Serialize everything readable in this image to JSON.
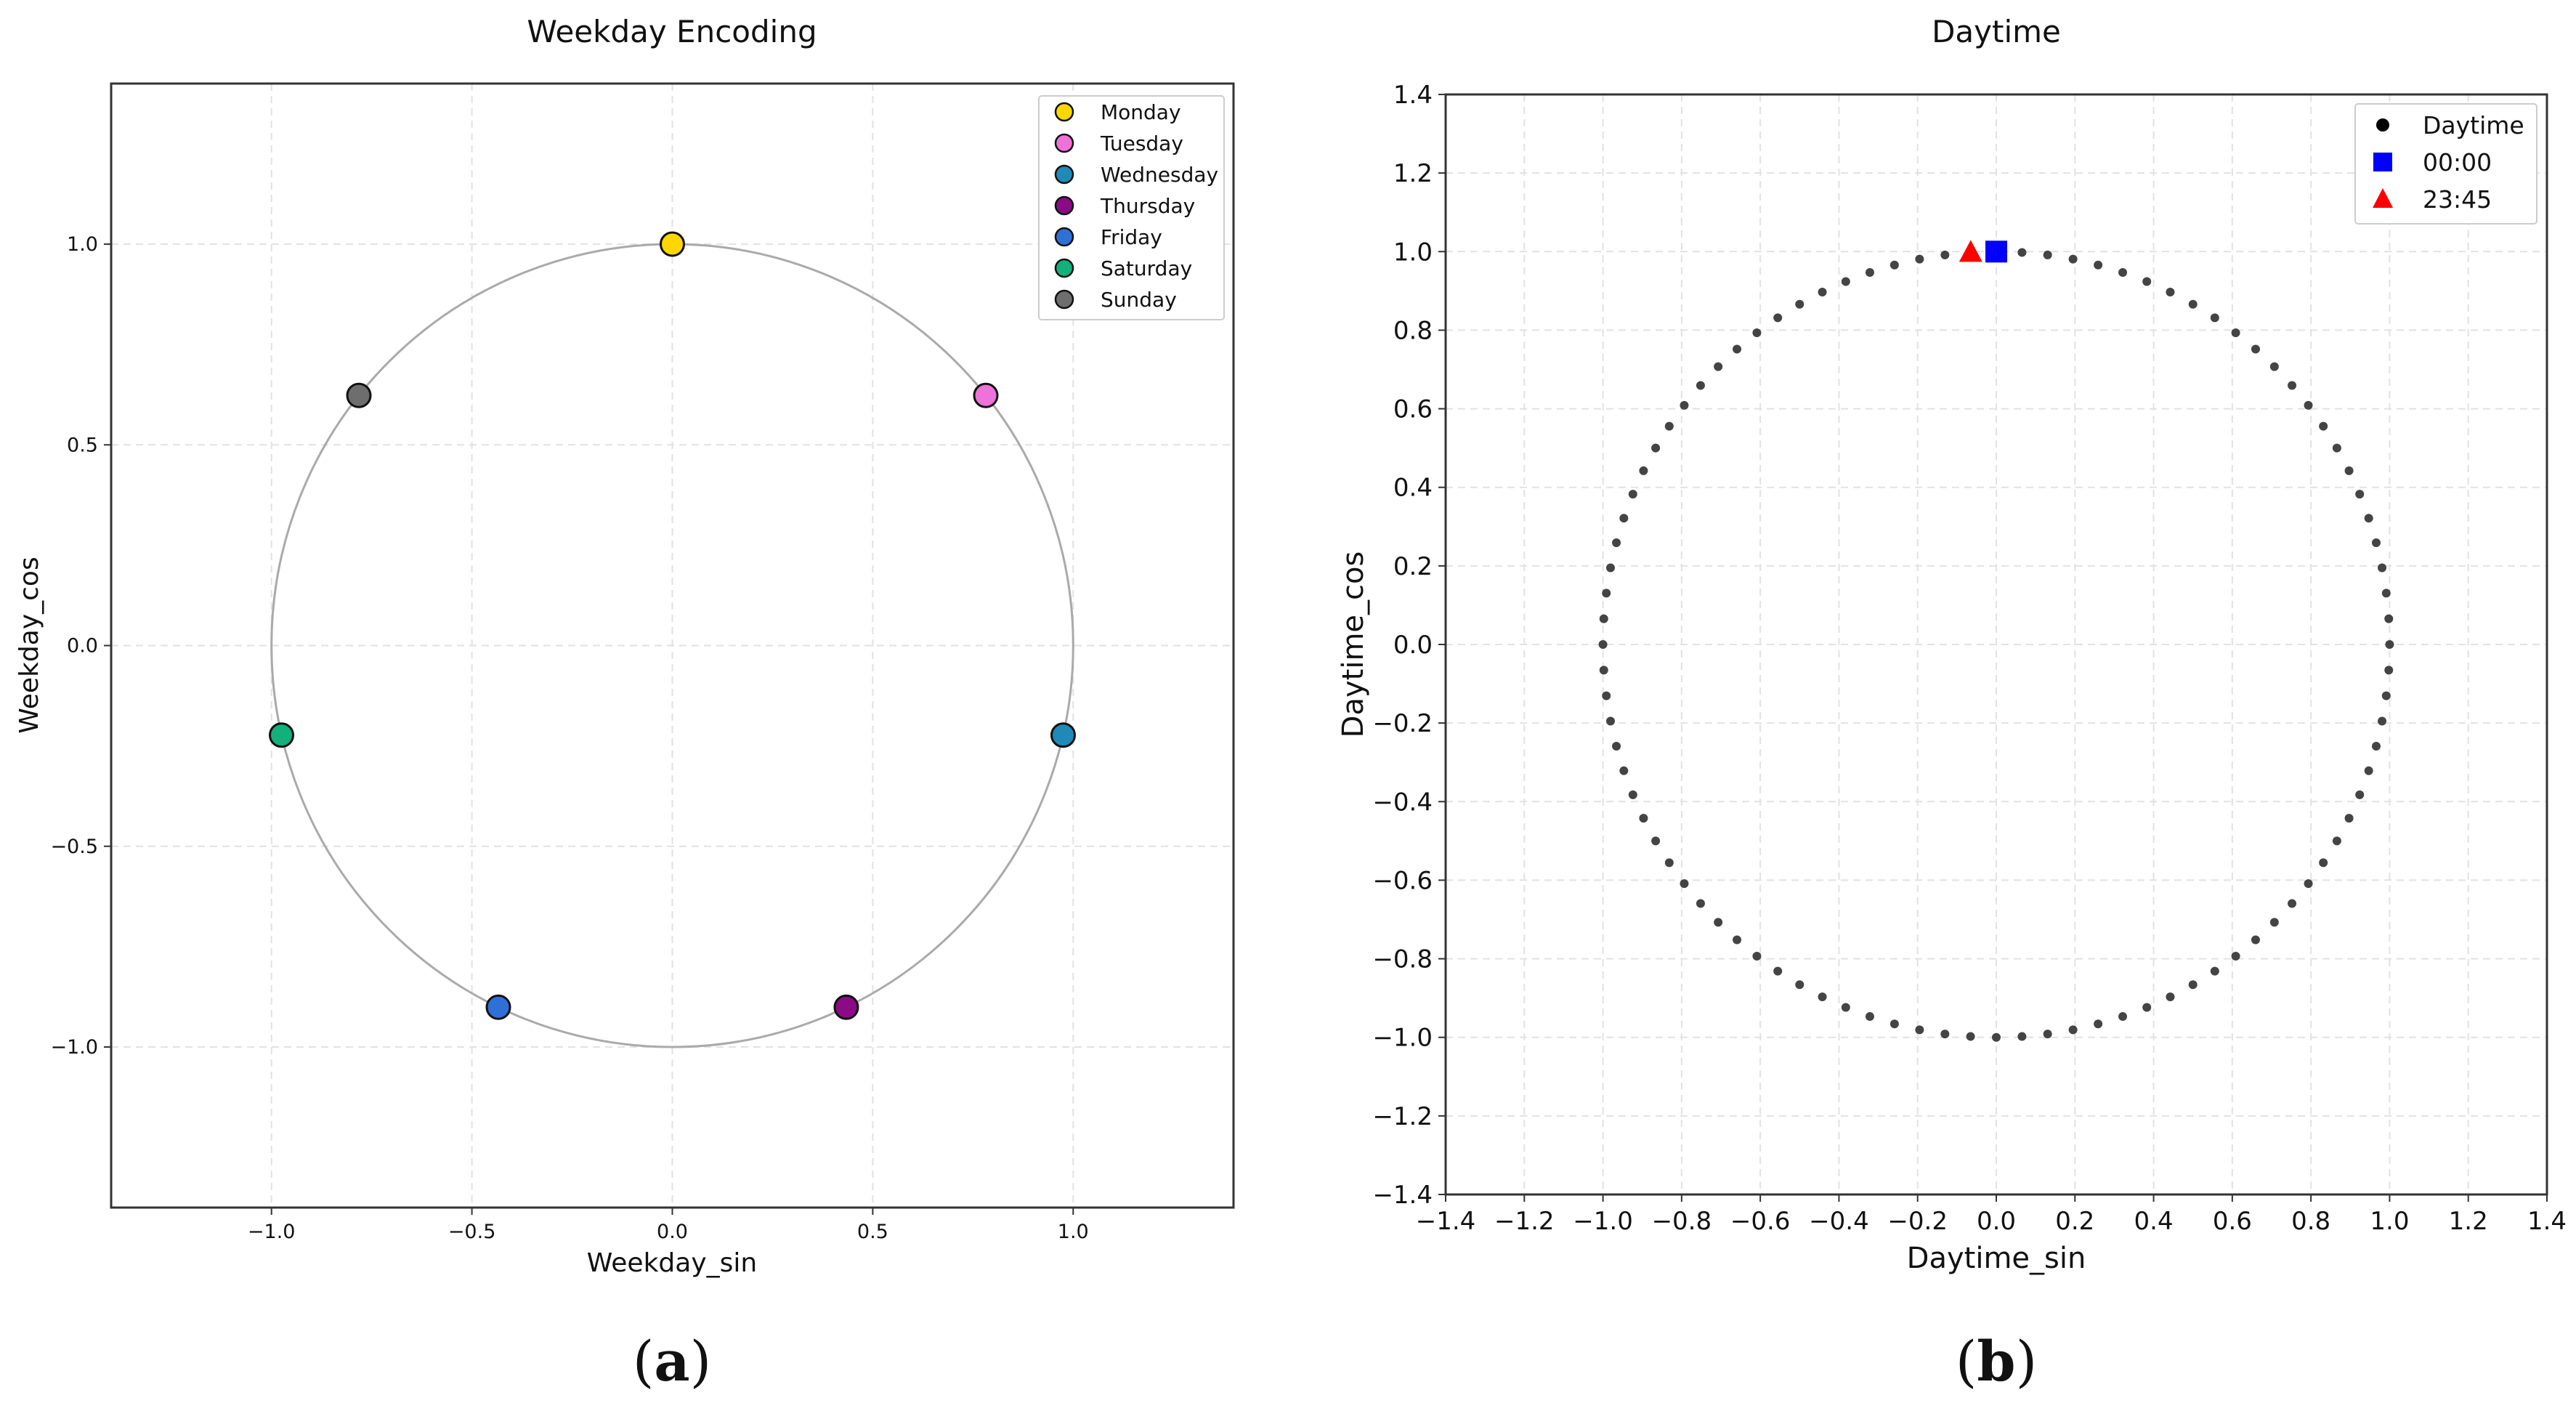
{
  "panels": [
    {
      "label_open": "(",
      "label_letter": "a",
      "label_close": ")"
    },
    {
      "label_open": "(",
      "label_letter": "b",
      "label_close": ")"
    }
  ],
  "chart_data": [
    {
      "type": "scatter",
      "title": "Weekday Encoding",
      "xlabel": "Weekday_sin",
      "ylabel": "Weekday_cos",
      "xlim": [
        -1.4,
        1.4
      ],
      "ylim": [
        -1.4,
        1.4
      ],
      "xticks": [
        -1.0,
        -0.5,
        0.0,
        0.5,
        1.0
      ],
      "yticks": [
        -1.0,
        -0.5,
        0.0,
        0.5,
        1.0
      ],
      "xtick_labels": [
        "−1.0",
        "−0.5",
        "0.0",
        "0.5",
        "1.0"
      ],
      "ytick_labels": [
        "−1.0",
        "−0.5",
        "0.0",
        "0.5",
        "1.0"
      ],
      "grid": true,
      "reference_circle": {
        "center": [
          0,
          0
        ],
        "radius": 1.0,
        "color": "#aaaaaa"
      },
      "legend_position": "top-right",
      "series": [
        {
          "name": "Monday",
          "color": "#ffd700",
          "x": 0.0,
          "y": 1.0
        },
        {
          "name": "Tuesday",
          "color": "#ee72d8",
          "x": 0.782,
          "y": 0.623
        },
        {
          "name": "Wednesday",
          "color": "#1f8ab8",
          "x": 0.975,
          "y": -0.223
        },
        {
          "name": "Thursday",
          "color": "#8b0a85",
          "x": 0.434,
          "y": -0.901
        },
        {
          "name": "Friday",
          "color": "#2f6fd8",
          "x": -0.434,
          "y": -0.901
        },
        {
          "name": "Saturday",
          "color": "#12b07a",
          "x": -0.975,
          "y": -0.223
        },
        {
          "name": "Sunday",
          "color": "#6e6e6e",
          "x": -0.782,
          "y": 0.623
        }
      ]
    },
    {
      "type": "scatter",
      "title": "Daytime",
      "xlabel": "Daytime_sin",
      "ylabel": "Daytime_cos",
      "xlim": [
        -1.4,
        1.4
      ],
      "ylim": [
        -1.4,
        1.4
      ],
      "xticks": [
        -1.4,
        -1.2,
        -1.0,
        -0.8,
        -0.6,
        -0.4,
        -0.2,
        0.0,
        0.2,
        0.4,
        0.6,
        0.8,
        1.0,
        1.2,
        1.4
      ],
      "yticks": [
        -1.4,
        -1.2,
        -1.0,
        -0.8,
        -0.6,
        -0.4,
        -0.2,
        0.0,
        0.2,
        0.4,
        0.6,
        0.8,
        1.0,
        1.2,
        1.4
      ],
      "xtick_labels": [
        "−1.4",
        "−1.2",
        "−1.0",
        "−0.8",
        "−0.6",
        "−0.4",
        "−0.2",
        "0.0",
        "0.2",
        "0.4",
        "0.6",
        "0.8",
        "1.0",
        "1.2",
        "1.4"
      ],
      "ytick_labels": [
        "−1.4",
        "−1.2",
        "−1.0",
        "−0.8",
        "−0.6",
        "−0.4",
        "−0.2",
        "0.0",
        "0.2",
        "0.4",
        "0.6",
        "0.8",
        "1.0",
        "1.2",
        "1.4"
      ],
      "grid": true,
      "legend_position": "top-right",
      "series": [
        {
          "name": "Daytime",
          "color": "#444444",
          "marker": "circle",
          "points_count": 96,
          "angle_step_deg": 3.75,
          "description_formula": "x = sin(2*pi*k/96), y = cos(2*pi*k/96), k = 0..95"
        },
        {
          "name": "00:00",
          "color": "#0000ff",
          "marker": "square",
          "x": 0.0,
          "y": 1.0
        },
        {
          "name": "23:45",
          "color": "#ff0000",
          "marker": "triangle",
          "x": -0.065,
          "y": 0.998
        }
      ]
    }
  ]
}
